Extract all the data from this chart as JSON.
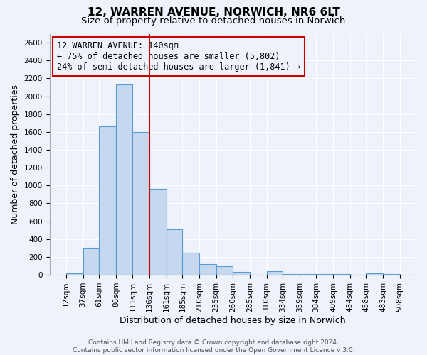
{
  "title": "12, WARREN AVENUE, NORWICH, NR6 6LT",
  "subtitle": "Size of property relative to detached houses in Norwich",
  "xlabel": "Distribution of detached houses by size in Norwich",
  "ylabel": "Number of detached properties",
  "bin_edges": [
    12,
    37,
    61,
    86,
    111,
    136,
    161,
    185,
    210,
    235,
    260,
    285,
    310,
    334,
    359,
    384,
    409,
    434,
    458,
    483,
    508
  ],
  "bar_heights": [
    20,
    300,
    1660,
    2130,
    1600,
    960,
    510,
    250,
    120,
    95,
    30,
    0,
    40,
    10,
    10,
    10,
    5,
    0,
    20,
    5
  ],
  "bar_color": "#c5d8f0",
  "bar_edge_color": "#5b9bd5",
  "vline_x": 136,
  "vline_color": "#cc0000",
  "annotation_line1": "12 WARREN AVENUE: 140sqm",
  "annotation_line2": "← 75% of detached houses are smaller (5,802)",
  "annotation_line3": "24% of semi-detached houses are larger (1,841) →",
  "ylim": [
    0,
    2700
  ],
  "yticks": [
    0,
    200,
    400,
    600,
    800,
    1000,
    1200,
    1400,
    1600,
    1800,
    2000,
    2200,
    2400,
    2600
  ],
  "xtick_labels": [
    "12sqm",
    "37sqm",
    "61sqm",
    "86sqm",
    "111sqm",
    "136sqm",
    "161sqm",
    "185sqm",
    "210sqm",
    "235sqm",
    "260sqm",
    "285sqm",
    "310sqm",
    "334sqm",
    "359sqm",
    "384sqm",
    "409sqm",
    "434sqm",
    "458sqm",
    "483sqm",
    "508sqm"
  ],
  "footer_line1": "Contains HM Land Registry data © Crown copyright and database right 2024.",
  "footer_line2": "Contains public sector information licensed under the Open Government Licence v 3.0.",
  "bg_color": "#eef2fb",
  "grid_color": "#ffffff",
  "title_fontsize": 11,
  "subtitle_fontsize": 9.5,
  "axis_label_fontsize": 9,
  "tick_fontsize": 7.5,
  "annotation_fontsize": 8.5,
  "footer_fontsize": 6.5
}
